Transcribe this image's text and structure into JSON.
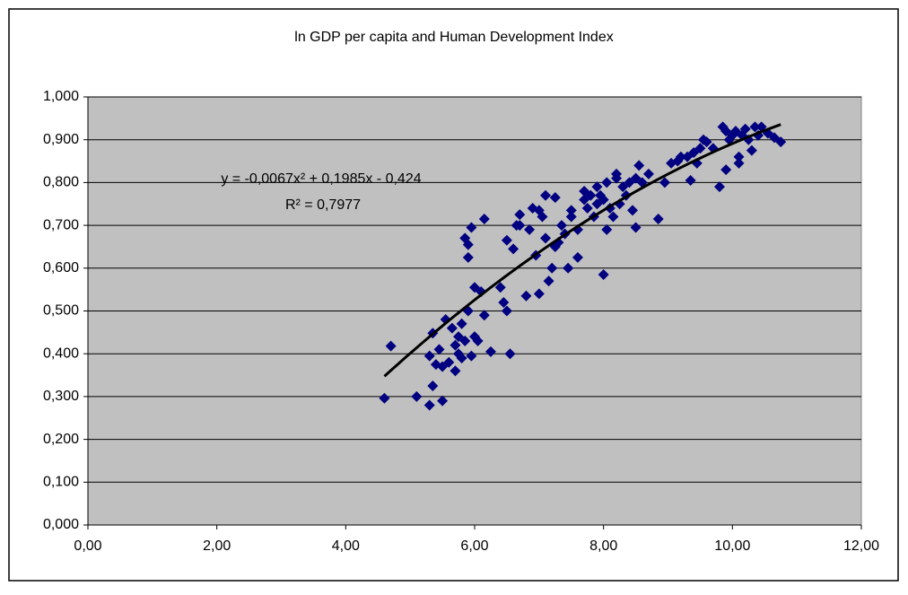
{
  "chart_data": {
    "type": "scatter",
    "title": "ln GDP per capita and Human Development Index",
    "annotations": [
      "y = -0,0067x² + 0,1985x - 0,424",
      "R² = 0,7977"
    ],
    "trendline": {
      "coefficients": [
        -0.0067,
        0.1985,
        -0.424
      ],
      "x_range": [
        4.6,
        10.75
      ],
      "color": "#000000"
    },
    "xlim": [
      0,
      12
    ],
    "xticks": [
      {
        "value": 0,
        "label": "0,00"
      },
      {
        "value": 2,
        "label": "2,00"
      },
      {
        "value": 4,
        "label": "4,00"
      },
      {
        "value": 6,
        "label": "6,00"
      },
      {
        "value": 8,
        "label": "8,00"
      },
      {
        "value": 10,
        "label": "10,00"
      },
      {
        "value": 12,
        "label": "12,00"
      }
    ],
    "ylim": [
      0,
      1
    ],
    "yticks": [
      {
        "value": 0,
        "label": "0,000"
      },
      {
        "value": 0.1,
        "label": "0,100"
      },
      {
        "value": 0.2,
        "label": "0,200"
      },
      {
        "value": 0.3,
        "label": "0,300"
      },
      {
        "value": 0.4,
        "label": "0,400"
      },
      {
        "value": 0.5,
        "label": "0,500"
      },
      {
        "value": 0.6,
        "label": "0,600"
      },
      {
        "value": 0.7,
        "label": "0,700"
      },
      {
        "value": 0.8,
        "label": "0,800"
      },
      {
        "value": 0.9,
        "label": "0,900"
      },
      {
        "value": 1,
        "label": "1,000"
      }
    ],
    "grid": true,
    "plot_background": "#c0c0c0",
    "series": [
      {
        "color": "#000080",
        "x": [
          4.6,
          4.7,
          5.1,
          5.3,
          5.35,
          5.35,
          5.4,
          5.3,
          5.45,
          5.5,
          5.5,
          5.55,
          5.6,
          5.65,
          5.7,
          5.7,
          5.75,
          5.75,
          5.8,
          5.8,
          5.85,
          5.85,
          5.9,
          5.9,
          5.9,
          5.95,
          5.95,
          6.0,
          6.0,
          6.05,
          6.1,
          6.15,
          6.15,
          6.25,
          6.4,
          6.45,
          6.5,
          6.5,
          6.55,
          6.6,
          6.65,
          6.7,
          6.7,
          6.8,
          6.85,
          6.9,
          6.95,
          7.0,
          7.0,
          7.05,
          7.1,
          7.1,
          7.15,
          7.2,
          7.25,
          7.25,
          7.3,
          7.35,
          7.4,
          7.45,
          7.5,
          7.5,
          7.6,
          7.6,
          7.7,
          7.7,
          7.75,
          7.8,
          7.85,
          7.9,
          7.9,
          7.95,
          8.0,
          8.0,
          8.05,
          8.05,
          8.1,
          8.15,
          8.2,
          8.2,
          8.25,
          8.3,
          8.35,
          8.4,
          8.45,
          8.5,
          8.5,
          8.55,
          8.6,
          8.7,
          8.85,
          8.95,
          9.05,
          9.15,
          9.2,
          9.3,
          9.35,
          9.4,
          9.45,
          9.5,
          9.55,
          9.6,
          9.7,
          9.8,
          9.85,
          9.9,
          9.9,
          9.95,
          10.0,
          10.05,
          10.1,
          10.1,
          10.15,
          10.2,
          10.25,
          10.3,
          10.35,
          10.4,
          10.45,
          10.55,
          10.65,
          10.75
        ],
        "values": [
          0.296,
          0.418,
          0.3,
          0.28,
          0.325,
          0.448,
          0.375,
          0.395,
          0.41,
          0.29,
          0.37,
          0.48,
          0.38,
          0.46,
          0.36,
          0.42,
          0.44,
          0.4,
          0.47,
          0.39,
          0.43,
          0.67,
          0.5,
          0.655,
          0.625,
          0.695,
          0.395,
          0.555,
          0.44,
          0.43,
          0.545,
          0.715,
          0.49,
          0.405,
          0.555,
          0.52,
          0.665,
          0.5,
          0.4,
          0.645,
          0.7,
          0.725,
          0.7,
          0.535,
          0.69,
          0.74,
          0.63,
          0.735,
          0.54,
          0.72,
          0.77,
          0.67,
          0.57,
          0.6,
          0.765,
          0.65,
          0.66,
          0.7,
          0.68,
          0.6,
          0.72,
          0.735,
          0.625,
          0.69,
          0.76,
          0.78,
          0.74,
          0.77,
          0.72,
          0.79,
          0.75,
          0.77,
          0.585,
          0.76,
          0.8,
          0.69,
          0.74,
          0.72,
          0.81,
          0.82,
          0.75,
          0.79,
          0.77,
          0.8,
          0.735,
          0.81,
          0.695,
          0.84,
          0.8,
          0.82,
          0.715,
          0.8,
          0.845,
          0.85,
          0.86,
          0.86,
          0.805,
          0.87,
          0.845,
          0.88,
          0.9,
          0.895,
          0.88,
          0.79,
          0.93,
          0.92,
          0.83,
          0.9,
          0.91,
          0.92,
          0.86,
          0.845,
          0.91,
          0.925,
          0.9,
          0.875,
          0.93,
          0.91,
          0.93,
          0.915,
          0.905,
          0.895
        ]
      }
    ]
  }
}
